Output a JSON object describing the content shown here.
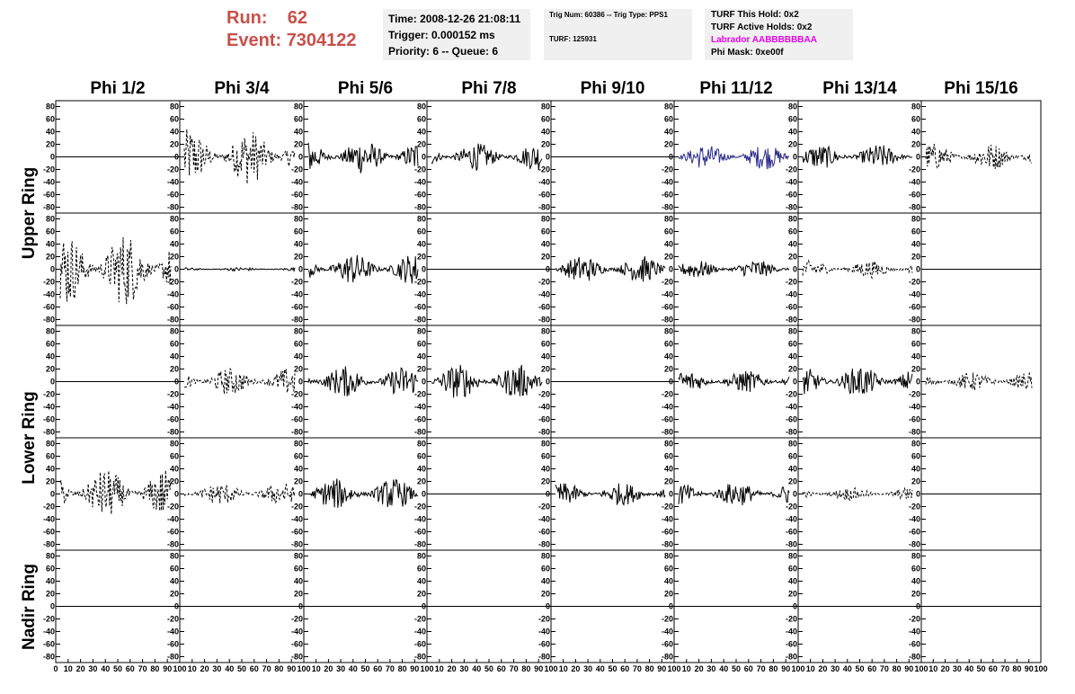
{
  "run_label": "Run:",
  "run_value": "62",
  "event_label": "Event:",
  "event_value": "7304122",
  "box1": {
    "time": "Time: 2008-12-26 21:08:11",
    "trigger": "Trigger: 0.000152 ms",
    "priority": "Priority: 6 -- Queue: 6"
  },
  "box2": {
    "trig": "Trig Num: 60386 -- Trig Type: PPS1",
    "turf": "TURF: 125931"
  },
  "box3": {
    "hold": "TURF This Hold: 0x2",
    "active": "TURF Active Holds: 0x2",
    "labrador": "Labrador AABBBBBBAA",
    "phimask": "Phi Mask: 0xe00f"
  },
  "colors": {
    "run_text": "#c8504a",
    "labrador": "#e800e8",
    "blue_trace": "#2b2b8c",
    "trace": "#000000"
  },
  "chart_data": {
    "type": "line",
    "columns": [
      "Phi 1/2",
      "Phi 3/4",
      "Phi 5/6",
      "Phi 7/8",
      "Phi 9/10",
      "Phi 11/12",
      "Phi 13/14",
      "Phi 15/16"
    ],
    "ring_labels": [
      "Upper Ring",
      "Lower Ring",
      "Nadir Ring"
    ],
    "ylim": [
      -85,
      85
    ],
    "y_ticks": [
      80,
      60,
      40,
      20,
      0,
      -20,
      -40,
      -60,
      -80
    ],
    "xlim": [
      0,
      100
    ],
    "x_ticks": [
      0,
      10,
      20,
      30,
      40,
      50,
      60,
      70,
      80,
      90,
      100
    ],
    "grid": false,
    "traces": [
      [
        {
          "style": "flat"
        },
        {
          "style": "dashed",
          "amp": 45
        },
        {
          "style": "solid",
          "amp": 28
        },
        {
          "style": "solid",
          "amp": 22
        },
        {
          "style": "flat"
        },
        {
          "style": "blue",
          "amp": 20
        },
        {
          "style": "solid",
          "amp": 20
        },
        {
          "style": "dashed",
          "amp": 22
        }
      ],
      [
        {
          "style": "dashed",
          "amp": 60
        },
        {
          "style": "solid",
          "amp": 3
        },
        {
          "style": "solid",
          "amp": 25
        },
        {
          "style": "flat"
        },
        {
          "style": "solid",
          "amp": 22
        },
        {
          "style": "solid",
          "amp": 15
        },
        {
          "style": "dashed",
          "amp": 14
        },
        {
          "style": "flat"
        }
      ],
      [
        {
          "style": "flat"
        },
        {
          "style": "dashed",
          "amp": 22
        },
        {
          "style": "solid",
          "amp": 25
        },
        {
          "style": "solid",
          "amp": 28
        },
        {
          "style": "flat"
        },
        {
          "style": "solid",
          "amp": 18
        },
        {
          "style": "solid",
          "amp": 25
        },
        {
          "style": "dashed",
          "amp": 15
        }
      ],
      [
        {
          "style": "dashed",
          "amp": 40
        },
        {
          "style": "dashed",
          "amp": 18
        },
        {
          "style": "solid",
          "amp": 25
        },
        {
          "style": "flat"
        },
        {
          "style": "solid",
          "amp": 18
        },
        {
          "style": "solid",
          "amp": 20
        },
        {
          "style": "dashed",
          "amp": 10
        },
        {
          "style": "flat"
        }
      ],
      [
        {
          "style": "flat"
        },
        {
          "style": "flat"
        },
        {
          "style": "flat"
        },
        {
          "style": "flat"
        },
        {
          "style": "flat"
        },
        {
          "style": "flat"
        },
        {
          "style": "flat"
        },
        {
          "style": "flat"
        }
      ]
    ]
  }
}
